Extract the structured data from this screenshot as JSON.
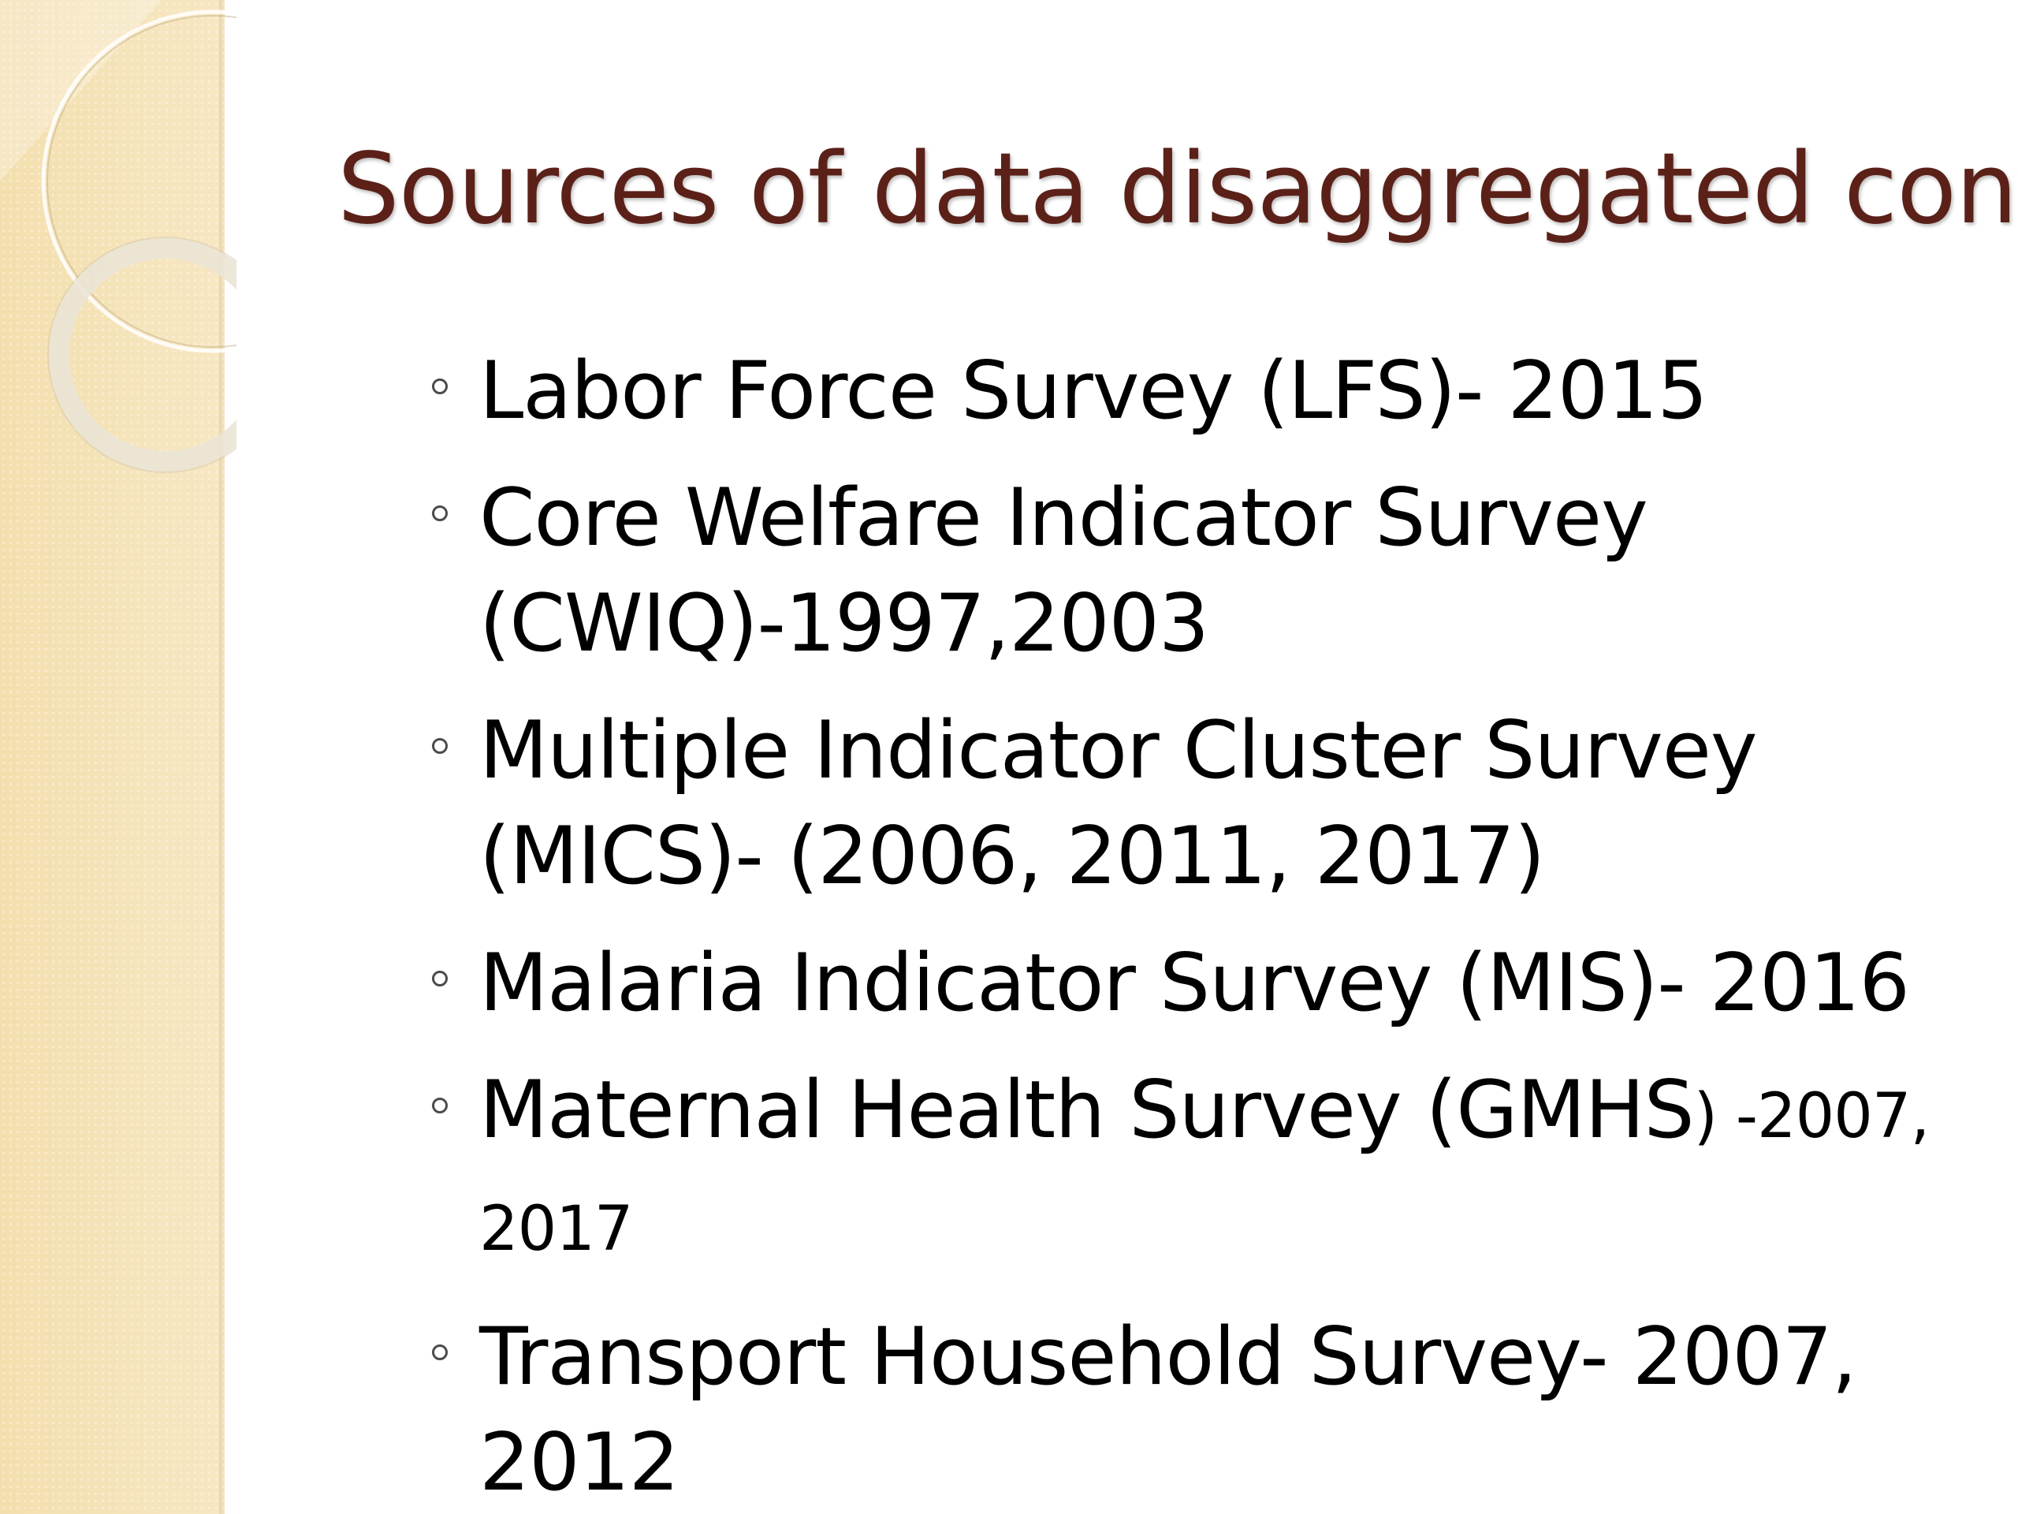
{
  "slide": {
    "title": "Sources of data disaggregated cont’d",
    "bullets": [
      {
        "text": "Labor Force Survey (LFS)- 2015"
      },
      {
        "text": "Core Welfare Indicator Survey (CWIQ)-1997,2003"
      },
      {
        "text": "Multiple Indicator Cluster Survey (MICS)- (2006, 2011, 2017)"
      },
      {
        "text": "Malaria Indicator Survey (MIS)- 2016"
      },
      {
        "text": "Maternal Health Survey (GMHS",
        "suffix": ") -2007, 2017"
      },
      {
        "text": "Transport Household Survey- 2007, 2012"
      }
    ]
  },
  "colors": {
    "title": "#5b2118",
    "text": "#000000",
    "side_band": "#f5e3b8",
    "bullet_marker": "#4b4b4b"
  },
  "icons": {
    "bullet": "hollow-circle-bullet-icon",
    "decoration": "ring-decoration"
  }
}
